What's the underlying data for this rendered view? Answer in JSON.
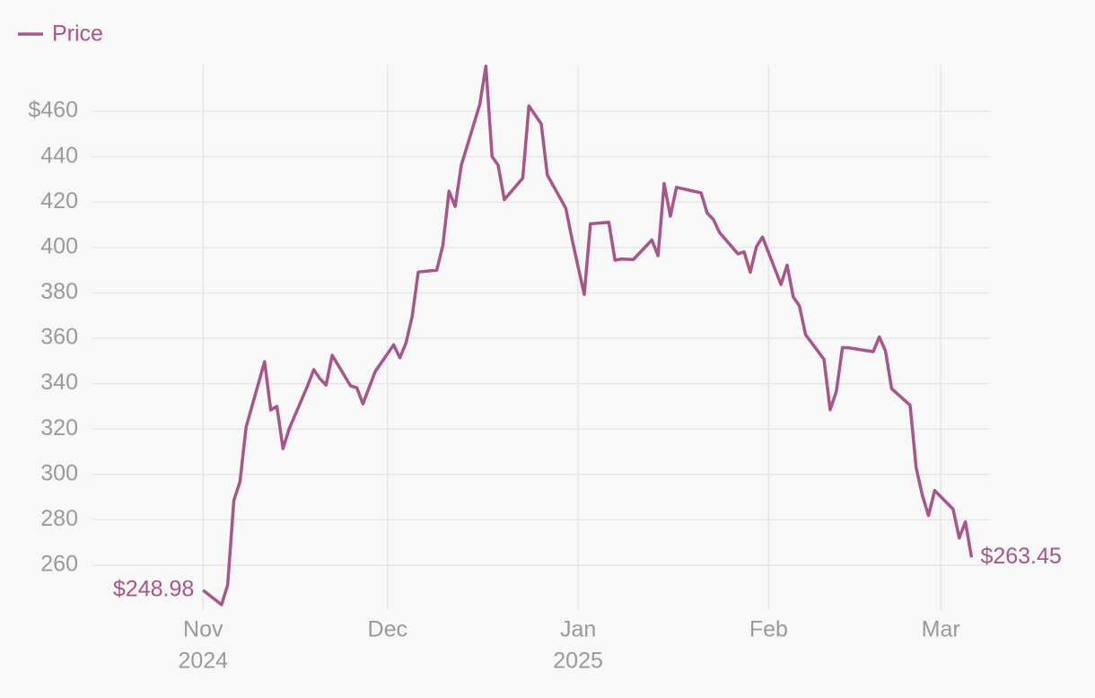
{
  "chart_data": {
    "type": "line",
    "x": [
      "2024-11-01",
      "2024-11-04",
      "2024-11-05",
      "2024-11-06",
      "2024-11-07",
      "2024-11-08",
      "2024-11-11",
      "2024-11-12",
      "2024-11-13",
      "2024-11-14",
      "2024-11-15",
      "2024-11-18",
      "2024-11-19",
      "2024-11-20",
      "2024-11-21",
      "2024-11-22",
      "2024-11-25",
      "2024-11-26",
      "2024-11-27",
      "2024-11-29",
      "2024-12-02",
      "2024-12-03",
      "2024-12-04",
      "2024-12-05",
      "2024-12-06",
      "2024-12-09",
      "2024-12-10",
      "2024-12-11",
      "2024-12-12",
      "2024-12-13",
      "2024-12-16",
      "2024-12-17",
      "2024-12-18",
      "2024-12-19",
      "2024-12-20",
      "2024-12-23",
      "2024-12-24",
      "2024-12-26",
      "2024-12-27",
      "2024-12-30",
      "2024-12-31",
      "2025-01-02",
      "2025-01-03",
      "2025-01-06",
      "2025-01-07",
      "2025-01-08",
      "2025-01-10",
      "2025-01-13",
      "2025-01-14",
      "2025-01-15",
      "2025-01-16",
      "2025-01-17",
      "2025-01-21",
      "2025-01-22",
      "2025-01-23",
      "2025-01-24",
      "2025-01-27",
      "2025-01-28",
      "2025-01-29",
      "2025-01-30",
      "2025-01-31",
      "2025-02-03",
      "2025-02-04",
      "2025-02-05",
      "2025-02-06",
      "2025-02-07",
      "2025-02-10",
      "2025-02-11",
      "2025-02-12",
      "2025-02-13",
      "2025-02-14",
      "2025-02-18",
      "2025-02-19",
      "2025-02-20",
      "2025-02-21",
      "2025-02-24",
      "2025-02-25",
      "2025-02-26",
      "2025-02-27",
      "2025-02-28",
      "2025-03-03",
      "2025-03-04",
      "2025-03-05",
      "2025-03-06"
    ],
    "series": [
      {
        "name": "Price",
        "color": "#a8558a",
        "values": [
          248.98,
          242.6,
          251.4,
          288.5,
          296.8,
          320.9,
          349.7,
          328.4,
          330.0,
          311.4,
          320.1,
          339.1,
          346.2,
          342.2,
          339.4,
          352.5,
          339.0,
          338.2,
          331.1,
          345.4,
          357.1,
          351.4,
          357.9,
          369.5,
          389.2,
          390.0,
          400.9,
          424.8,
          418.1,
          436.2,
          463.0,
          479.9,
          440.1,
          436.2,
          421.1,
          430.6,
          462.4,
          454.5,
          431.9,
          417.3,
          403.8,
          379.3,
          410.4,
          411.1,
          394.4,
          394.9,
          394.7,
          403.3,
          396.4,
          428.2,
          413.8,
          426.5,
          424.1,
          415.1,
          412.4,
          406.6,
          397.2,
          398.1,
          389.1,
          400.3,
          404.6,
          383.7,
          392.2,
          378.2,
          374.3,
          361.6,
          350.7,
          328.5,
          336.5,
          355.9,
          355.8,
          354.1,
          360.6,
          354.4,
          337.8,
          330.5,
          302.8,
          290.8,
          281.9,
          292.9,
          284.7,
          272.0,
          279.1,
          263.45
        ],
        "value_labels": [
          "$248.98",
          null,
          null,
          null,
          null,
          null,
          null,
          null,
          null,
          null,
          null,
          null,
          null,
          null,
          null,
          null,
          null,
          null,
          null,
          null,
          null,
          null,
          null,
          null,
          null,
          null,
          null,
          null,
          null,
          null,
          null,
          null,
          null,
          null,
          null,
          null,
          null,
          null,
          null,
          null,
          null,
          null,
          null,
          null,
          null,
          null,
          null,
          null,
          null,
          null,
          null,
          null,
          null,
          null,
          null,
          null,
          null,
          null,
          null,
          null,
          null,
          null,
          null,
          null,
          null,
          null,
          null,
          null,
          null,
          null,
          null,
          null,
          null,
          null,
          null,
          null,
          null,
          null,
          null,
          null,
          null,
          null,
          null,
          "$263.45"
        ]
      }
    ],
    "xlim": [
      "2024-10-14",
      "2025-03-09"
    ],
    "xticks": [
      {
        "value": "2024-11-01",
        "label": "Nov",
        "year": "2024"
      },
      {
        "value": "2024-12-01",
        "label": "Dec"
      },
      {
        "value": "2025-01-01",
        "label": "Jan",
        "year": "2025"
      },
      {
        "value": "2025-02-01",
        "label": "Feb"
      },
      {
        "value": "2025-03-01",
        "label": "Mar"
      }
    ],
    "ylim": [
      242.2,
      480.2
    ],
    "yticks": [
      260,
      280,
      300,
      320,
      340,
      360,
      380,
      400,
      420,
      440,
      {
        "value": 460,
        "label": "$460"
      }
    ],
    "grid": true,
    "legend": "top-left"
  }
}
